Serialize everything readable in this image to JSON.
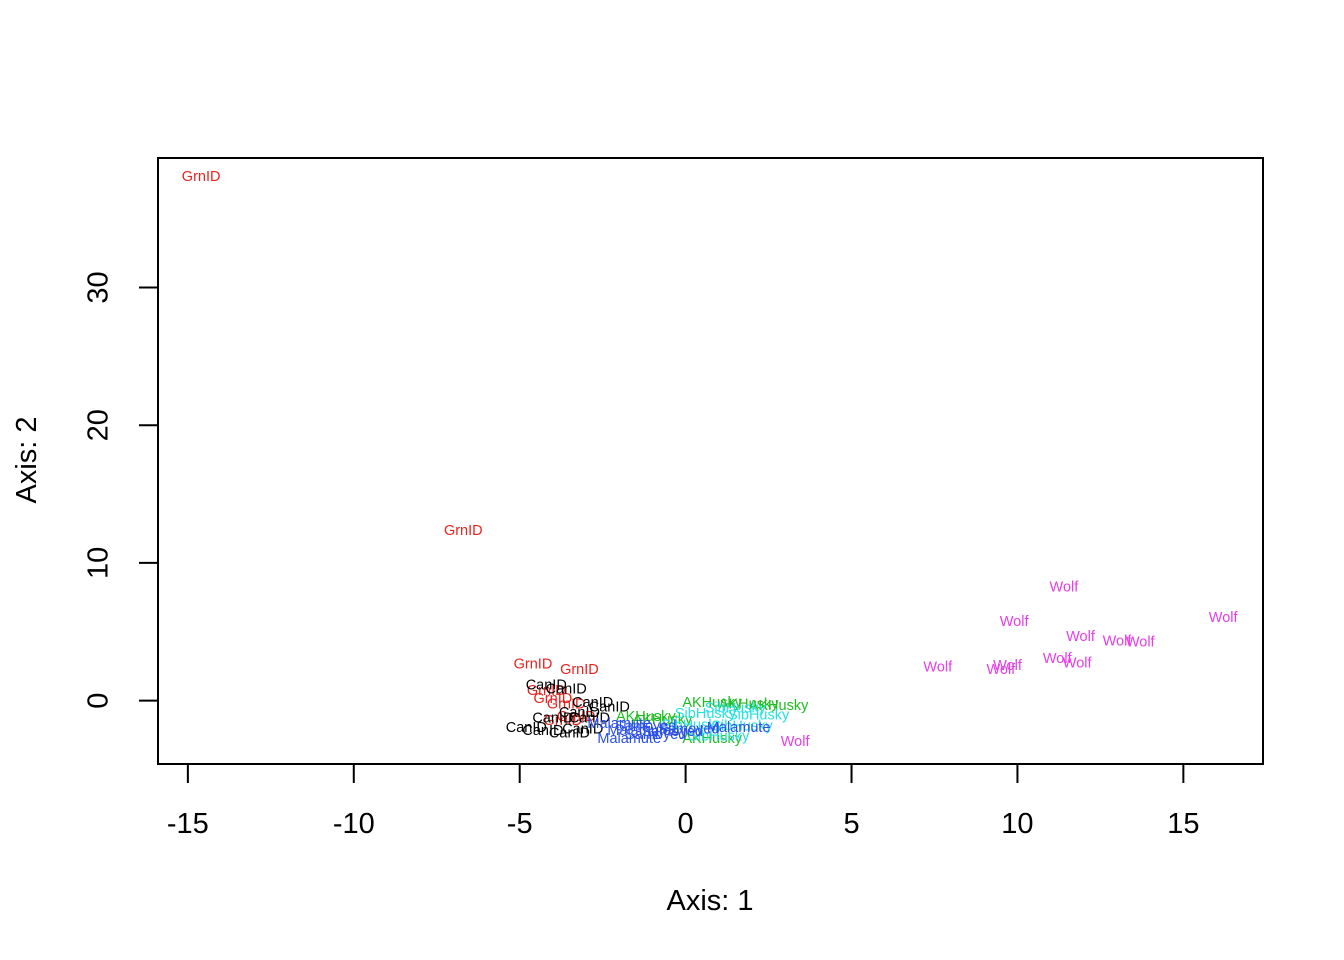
{
  "chart_data": {
    "type": "scatter",
    "title": "",
    "xlabel": "Axis: 1",
    "ylabel": "Axis: 2",
    "xlim": [
      -15.9,
      17.4
    ],
    "ylim": [
      -4.6,
      39.4
    ],
    "x_ticks": [
      -15,
      -10,
      -5,
      0,
      5,
      10,
      15
    ],
    "y_ticks": [
      0,
      10,
      20,
      30
    ],
    "grid": false,
    "legend": "none",
    "colors": {
      "GrnID": "#e8231e",
      "CanID": "#000000",
      "Wolf": "#e63ee8",
      "AKHusky": "#1fbd1f",
      "SibHusky": "#27e0e0",
      "Malamute": "#2a4fe6",
      "Samoyed": "#2a4fe6"
    },
    "series": [
      {
        "name": "GrnID",
        "color": "#e8231e",
        "points": [
          {
            "label": "GrnID",
            "x": -14.6,
            "y": 38.0
          },
          {
            "label": "GrnID",
            "x": -6.7,
            "y": 12.3
          },
          {
            "label": "GrnID",
            "x": -4.6,
            "y": 2.6
          },
          {
            "label": "GrnID",
            "x": -3.2,
            "y": 2.2
          },
          {
            "label": "GrnID",
            "x": -4.2,
            "y": 0.7
          },
          {
            "label": "GrnID",
            "x": -4.0,
            "y": 0.1
          },
          {
            "label": "GrnID",
            "x": -3.6,
            "y": -0.3
          },
          {
            "label": "GrnID",
            "x": -3.3,
            "y": -1.2
          },
          {
            "label": "GrnID",
            "x": -3.7,
            "y": -1.5
          }
        ]
      },
      {
        "name": "CanID",
        "color": "#000000",
        "points": [
          {
            "label": "CanID",
            "x": -4.2,
            "y": 1.1
          },
          {
            "label": "CanID",
            "x": -3.6,
            "y": 0.8
          },
          {
            "label": "CanID",
            "x": -2.8,
            "y": -0.2
          },
          {
            "label": "CanID",
            "x": -2.3,
            "y": -0.5
          },
          {
            "label": "CanID",
            "x": -3.2,
            "y": -0.9
          },
          {
            "label": "CanID",
            "x": -2.9,
            "y": -1.3
          },
          {
            "label": "CanID",
            "x": -4.0,
            "y": -1.3
          },
          {
            "label": "CanID",
            "x": -4.8,
            "y": -2.0
          },
          {
            "label": "CanID",
            "x": -4.3,
            "y": -2.2
          },
          {
            "label": "CanID",
            "x": -3.5,
            "y": -2.4
          },
          {
            "label": "CanID",
            "x": -3.1,
            "y": -2.1
          }
        ]
      },
      {
        "name": "Wolf",
        "color": "#e63ee8",
        "points": [
          {
            "label": "Wolf",
            "x": 11.4,
            "y": 8.2
          },
          {
            "label": "Wolf",
            "x": 16.2,
            "y": 6.0
          },
          {
            "label": "Wolf",
            "x": 9.9,
            "y": 5.7
          },
          {
            "label": "Wolf",
            "x": 11.9,
            "y": 4.6
          },
          {
            "label": "Wolf",
            "x": 13.0,
            "y": 4.3
          },
          {
            "label": "Wolf",
            "x": 13.7,
            "y": 4.2
          },
          {
            "label": "Wolf",
            "x": 11.2,
            "y": 3.0
          },
          {
            "label": "Wolf",
            "x": 11.8,
            "y": 2.7
          },
          {
            "label": "Wolf",
            "x": 7.6,
            "y": 2.4
          },
          {
            "label": "Wolf",
            "x": 9.7,
            "y": 2.5
          },
          {
            "label": "Wolf",
            "x": 9.5,
            "y": 2.2
          },
          {
            "label": "Wolf",
            "x": 3.3,
            "y": -3.0
          }
        ]
      },
      {
        "name": "AKHusky",
        "color": "#1fbd1f",
        "points": [
          {
            "label": "AKHusky",
            "x": 0.8,
            "y": -0.2
          },
          {
            "label": "AKHusky",
            "x": 1.9,
            "y": -0.3
          },
          {
            "label": "AKHusky",
            "x": 2.8,
            "y": -0.4
          },
          {
            "label": "AKHusky",
            "x": -1.2,
            "y": -1.2
          },
          {
            "label": "AKHusky",
            "x": -0.7,
            "y": -1.4
          },
          {
            "label": "AKHusky",
            "x": 0.8,
            "y": -2.8
          }
        ]
      },
      {
        "name": "SibHusky",
        "color": "#27e0e0",
        "points": [
          {
            "label": "SibHusky",
            "x": 1.5,
            "y": -0.6
          },
          {
            "label": "SibHusky",
            "x": 2.2,
            "y": -1.1
          },
          {
            "label": "SibHusky",
            "x": 0.6,
            "y": -1.0
          },
          {
            "label": "SibHusky",
            "x": 1.7,
            "y": -1.9
          },
          {
            "label": "SibHusky",
            "x": 0.2,
            "y": -1.8
          },
          {
            "label": "SibHusky",
            "x": 1.0,
            "y": -2.6
          }
        ]
      },
      {
        "name": "Malamute",
        "color": "#2a4fe6",
        "points": [
          {
            "label": "Malamute",
            "x": -1.7,
            "y": -2.8
          },
          {
            "label": "Malamute",
            "x": -1.4,
            "y": -2.2
          },
          {
            "label": "Malamute",
            "x": -2.0,
            "y": -1.7
          },
          {
            "label": "Malamute",
            "x": 1.6,
            "y": -2.0
          }
        ]
      },
      {
        "name": "Samoyed",
        "color": "#2a4fe6",
        "points": [
          {
            "label": "Samoyed",
            "x": -1.2,
            "y": -1.9
          },
          {
            "label": "Samoyed",
            "x": -0.4,
            "y": -2.3
          },
          {
            "label": "Samoyed",
            "x": 0.1,
            "y": -2.1
          },
          {
            "label": "Samoyed",
            "x": -0.9,
            "y": -2.5
          }
        ]
      }
    ]
  }
}
